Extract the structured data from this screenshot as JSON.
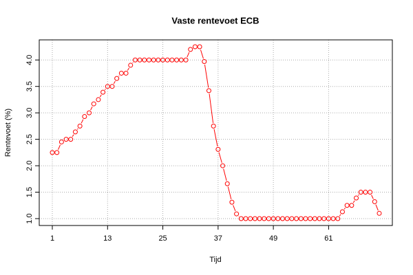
{
  "chart_data": {
    "type": "line",
    "title": "Vaste rentevoet ECB",
    "x_label": "Tijd",
    "y_label": "Rentevoet (%)",
    "x": [
      1,
      2,
      3,
      4,
      5,
      6,
      7,
      8,
      9,
      10,
      11,
      12,
      13,
      14,
      15,
      16,
      17,
      18,
      19,
      20,
      21,
      22,
      23,
      24,
      25,
      26,
      27,
      28,
      29,
      30,
      31,
      32,
      33,
      34,
      35,
      36,
      37,
      38,
      39,
      40,
      41,
      42,
      43,
      44,
      45,
      46,
      47,
      48,
      49,
      50,
      51,
      52,
      53,
      54,
      55,
      56,
      57,
      58,
      59,
      60,
      61,
      62,
      63,
      64,
      65,
      66,
      67,
      68,
      69,
      70,
      71,
      72
    ],
    "series": [
      {
        "name": "Rentevoet",
        "color": "#ff0000",
        "values": [
          2.25,
          2.25,
          2.45,
          2.5,
          2.5,
          2.64,
          2.75,
          2.93,
          3.0,
          3.17,
          3.25,
          3.39,
          3.5,
          3.5,
          3.65,
          3.75,
          3.75,
          3.9,
          4.0,
          4.0,
          4.0,
          4.0,
          4.0,
          4.0,
          4.0,
          4.0,
          4.0,
          4.0,
          4.0,
          4.0,
          4.2,
          4.25,
          4.25,
          3.97,
          3.42,
          2.75,
          2.31,
          2.0,
          1.66,
          1.31,
          1.09,
          1.0,
          1.0,
          1.0,
          1.0,
          1.0,
          1.0,
          1.0,
          1.0,
          1.0,
          1.0,
          1.0,
          1.0,
          1.0,
          1.0,
          1.0,
          1.0,
          1.0,
          1.0,
          1.0,
          1.0,
          1.0,
          1.0,
          1.13,
          1.25,
          1.25,
          1.39,
          1.5,
          1.5,
          1.5,
          1.32,
          1.1
        ]
      }
    ],
    "xlim": [
      -1.84,
      74.84
    ],
    "ylim": [
      0.87,
      4.38
    ],
    "xticks": [
      1,
      13,
      25,
      37,
      49,
      61
    ],
    "yticks": [
      {
        "value": 1.0,
        "label": "1.0"
      },
      1.5,
      {
        "value": 2.0,
        "label": "2.0"
      },
      2.5,
      {
        "value": 3.0,
        "label": "3.0"
      },
      3.5,
      {
        "value": 4.0,
        "label": "4.0"
      }
    ],
    "grid": true
  }
}
